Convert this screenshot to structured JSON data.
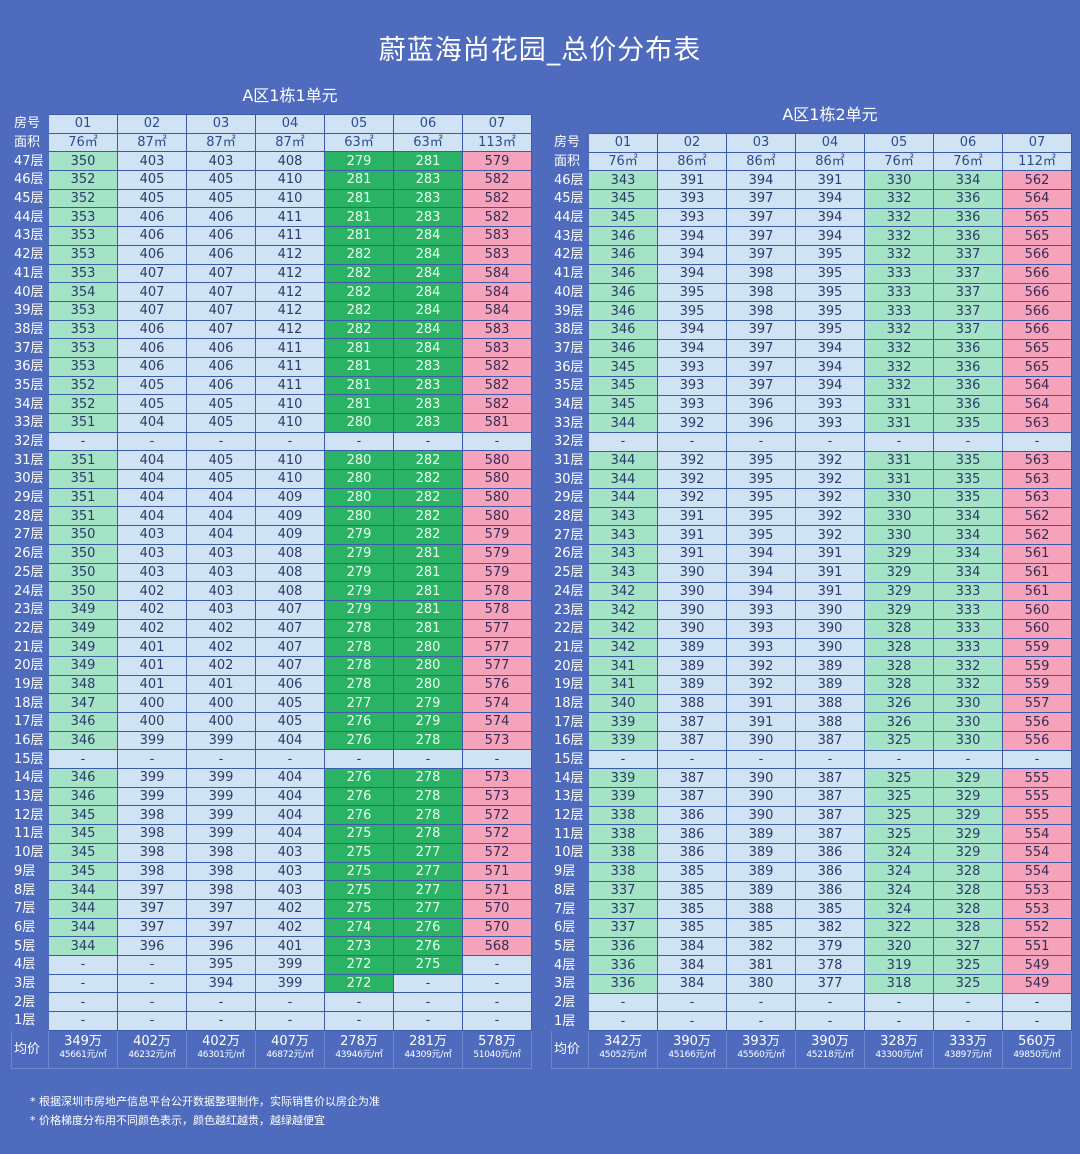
{
  "title": "蔚蓝海尚花园_总价分布表",
  "unit1": {
    "name": "A区1栋1单元",
    "row_label_header": "房号",
    "area_label": "面积",
    "avg_label": "均价",
    "room_numbers": [
      "01",
      "02",
      "03",
      "04",
      "05",
      "06",
      "07"
    ],
    "areas": [
      "76㎡",
      "87㎡",
      "87㎡",
      "87㎡",
      "63㎡",
      "63㎡",
      "113㎡"
    ],
    "column_colors": [
      "g1",
      "w",
      "w",
      "w",
      "g2",
      "g2",
      "p"
    ],
    "rows": [
      {
        "floor": "47层",
        "values": [
          "350",
          "403",
          "403",
          "408",
          "279",
          "281",
          "579"
        ]
      },
      {
        "floor": "46层",
        "values": [
          "352",
          "405",
          "405",
          "410",
          "281",
          "283",
          "582"
        ]
      },
      {
        "floor": "45层",
        "values": [
          "352",
          "405",
          "405",
          "410",
          "281",
          "283",
          "582"
        ]
      },
      {
        "floor": "44层",
        "values": [
          "353",
          "406",
          "406",
          "411",
          "281",
          "283",
          "582"
        ]
      },
      {
        "floor": "43层",
        "values": [
          "353",
          "406",
          "406",
          "411",
          "281",
          "284",
          "583"
        ]
      },
      {
        "floor": "42层",
        "values": [
          "353",
          "406",
          "406",
          "412",
          "282",
          "284",
          "583"
        ]
      },
      {
        "floor": "41层",
        "values": [
          "353",
          "407",
          "407",
          "412",
          "282",
          "284",
          "584"
        ]
      },
      {
        "floor": "40层",
        "values": [
          "354",
          "407",
          "407",
          "412",
          "282",
          "284",
          "584"
        ]
      },
      {
        "floor": "39层",
        "values": [
          "353",
          "407",
          "407",
          "412",
          "282",
          "284",
          "584"
        ]
      },
      {
        "floor": "38层",
        "values": [
          "353",
          "406",
          "407",
          "412",
          "282",
          "284",
          "583"
        ]
      },
      {
        "floor": "37层",
        "values": [
          "353",
          "406",
          "406",
          "411",
          "281",
          "284",
          "583"
        ]
      },
      {
        "floor": "36层",
        "values": [
          "353",
          "406",
          "406",
          "411",
          "281",
          "283",
          "582"
        ]
      },
      {
        "floor": "35层",
        "values": [
          "352",
          "405",
          "406",
          "411",
          "281",
          "283",
          "582"
        ]
      },
      {
        "floor": "34层",
        "values": [
          "352",
          "405",
          "405",
          "410",
          "281",
          "283",
          "582"
        ]
      },
      {
        "floor": "33层",
        "values": [
          "351",
          "404",
          "405",
          "410",
          "280",
          "283",
          "581"
        ]
      },
      {
        "floor": "32层",
        "values": [
          "-",
          "-",
          "-",
          "-",
          "-",
          "-",
          "-"
        ]
      },
      {
        "floor": "31层",
        "values": [
          "351",
          "404",
          "405",
          "410",
          "280",
          "282",
          "580"
        ]
      },
      {
        "floor": "30层",
        "values": [
          "351",
          "404",
          "405",
          "410",
          "280",
          "282",
          "580"
        ]
      },
      {
        "floor": "29层",
        "values": [
          "351",
          "404",
          "404",
          "409",
          "280",
          "282",
          "580"
        ]
      },
      {
        "floor": "28层",
        "values": [
          "351",
          "404",
          "404",
          "409",
          "280",
          "282",
          "580"
        ]
      },
      {
        "floor": "27层",
        "values": [
          "350",
          "403",
          "404",
          "409",
          "279",
          "282",
          "579"
        ]
      },
      {
        "floor": "26层",
        "values": [
          "350",
          "403",
          "403",
          "408",
          "279",
          "281",
          "579"
        ]
      },
      {
        "floor": "25层",
        "values": [
          "350",
          "403",
          "403",
          "408",
          "279",
          "281",
          "579"
        ]
      },
      {
        "floor": "24层",
        "values": [
          "350",
          "402",
          "403",
          "408",
          "279",
          "281",
          "578"
        ]
      },
      {
        "floor": "23层",
        "values": [
          "349",
          "402",
          "403",
          "407",
          "279",
          "281",
          "578"
        ]
      },
      {
        "floor": "22层",
        "values": [
          "349",
          "402",
          "402",
          "407",
          "278",
          "281",
          "577"
        ]
      },
      {
        "floor": "21层",
        "values": [
          "349",
          "401",
          "402",
          "407",
          "278",
          "280",
          "577"
        ]
      },
      {
        "floor": "20层",
        "values": [
          "349",
          "401",
          "402",
          "407",
          "278",
          "280",
          "577"
        ]
      },
      {
        "floor": "19层",
        "values": [
          "348",
          "401",
          "401",
          "406",
          "278",
          "280",
          "576"
        ]
      },
      {
        "floor": "18层",
        "values": [
          "347",
          "400",
          "400",
          "405",
          "277",
          "279",
          "574"
        ]
      },
      {
        "floor": "17层",
        "values": [
          "346",
          "400",
          "400",
          "405",
          "276",
          "279",
          "574"
        ]
      },
      {
        "floor": "16层",
        "values": [
          "346",
          "399",
          "399",
          "404",
          "276",
          "278",
          "573"
        ]
      },
      {
        "floor": "15层",
        "values": [
          "-",
          "-",
          "-",
          "-",
          "-",
          "-",
          "-"
        ]
      },
      {
        "floor": "14层",
        "values": [
          "346",
          "399",
          "399",
          "404",
          "276",
          "278",
          "573"
        ]
      },
      {
        "floor": "13层",
        "values": [
          "346",
          "399",
          "399",
          "404",
          "276",
          "278",
          "573"
        ]
      },
      {
        "floor": "12层",
        "values": [
          "345",
          "398",
          "399",
          "404",
          "276",
          "278",
          "572"
        ]
      },
      {
        "floor": "11层",
        "values": [
          "345",
          "398",
          "399",
          "404",
          "275",
          "278",
          "572"
        ]
      },
      {
        "floor": "10层",
        "values": [
          "345",
          "398",
          "398",
          "403",
          "275",
          "277",
          "572"
        ]
      },
      {
        "floor": "9层",
        "values": [
          "345",
          "398",
          "398",
          "403",
          "275",
          "277",
          "571"
        ]
      },
      {
        "floor": "8层",
        "values": [
          "344",
          "397",
          "398",
          "403",
          "275",
          "277",
          "571"
        ]
      },
      {
        "floor": "7层",
        "values": [
          "344",
          "397",
          "397",
          "402",
          "275",
          "277",
          "570"
        ]
      },
      {
        "floor": "6层",
        "values": [
          "344",
          "397",
          "397",
          "402",
          "274",
          "276",
          "570"
        ]
      },
      {
        "floor": "5层",
        "values": [
          "344",
          "396",
          "396",
          "401",
          "273",
          "276",
          "568"
        ]
      },
      {
        "floor": "4层",
        "values": [
          "-",
          "-",
          "395",
          "399",
          "272",
          "275",
          "-"
        ]
      },
      {
        "floor": "3层",
        "values": [
          "-",
          "-",
          "394",
          "399",
          "272",
          "-",
          "-"
        ]
      },
      {
        "floor": "2层",
        "values": [
          "-",
          "-",
          "-",
          "-",
          "-",
          "-",
          "-"
        ]
      },
      {
        "floor": "1层",
        "values": [
          "-",
          "-",
          "-",
          "-",
          "-",
          "-",
          "-"
        ]
      }
    ],
    "averages": [
      {
        "total": "349万",
        "per_sqm": "45661元/㎡"
      },
      {
        "total": "402万",
        "per_sqm": "46232元/㎡"
      },
      {
        "total": "402万",
        "per_sqm": "46301元/㎡"
      },
      {
        "total": "407万",
        "per_sqm": "46872元/㎡"
      },
      {
        "total": "278万",
        "per_sqm": "43946元/㎡"
      },
      {
        "total": "281万",
        "per_sqm": "44309元/㎡"
      },
      {
        "total": "578万",
        "per_sqm": "51040元/㎡"
      }
    ]
  },
  "unit2": {
    "name": "A区1栋2单元",
    "row_label_header": "房号",
    "area_label": "面积",
    "avg_label": "均价",
    "room_numbers": [
      "01",
      "02",
      "03",
      "04",
      "05",
      "06",
      "07"
    ],
    "areas": [
      "76㎡",
      "86㎡",
      "86㎡",
      "86㎡",
      "76㎡",
      "76㎡",
      "112㎡"
    ],
    "column_colors": [
      "g1",
      "w",
      "w",
      "w",
      "g1",
      "g1",
      "p"
    ],
    "rows": [
      {
        "floor": "46层",
        "values": [
          "343",
          "391",
          "394",
          "391",
          "330",
          "334",
          "562"
        ]
      },
      {
        "floor": "45层",
        "values": [
          "345",
          "393",
          "397",
          "394",
          "332",
          "336",
          "564"
        ]
      },
      {
        "floor": "44层",
        "values": [
          "345",
          "393",
          "397",
          "394",
          "332",
          "336",
          "565"
        ]
      },
      {
        "floor": "43层",
        "values": [
          "346",
          "394",
          "397",
          "394",
          "332",
          "336",
          "565"
        ]
      },
      {
        "floor": "42层",
        "values": [
          "346",
          "394",
          "397",
          "395",
          "332",
          "337",
          "566"
        ]
      },
      {
        "floor": "41层",
        "values": [
          "346",
          "394",
          "398",
          "395",
          "333",
          "337",
          "566"
        ]
      },
      {
        "floor": "40层",
        "values": [
          "346",
          "395",
          "398",
          "395",
          "333",
          "337",
          "566"
        ]
      },
      {
        "floor": "39层",
        "values": [
          "346",
          "395",
          "398",
          "395",
          "333",
          "337",
          "566"
        ]
      },
      {
        "floor": "38层",
        "values": [
          "346",
          "394",
          "397",
          "395",
          "332",
          "337",
          "566"
        ]
      },
      {
        "floor": "37层",
        "values": [
          "346",
          "394",
          "397",
          "394",
          "332",
          "336",
          "565"
        ]
      },
      {
        "floor": "36层",
        "values": [
          "345",
          "393",
          "397",
          "394",
          "332",
          "336",
          "565"
        ]
      },
      {
        "floor": "35层",
        "values": [
          "345",
          "393",
          "397",
          "394",
          "332",
          "336",
          "564"
        ]
      },
      {
        "floor": "34层",
        "values": [
          "345",
          "393",
          "396",
          "393",
          "331",
          "336",
          "564"
        ]
      },
      {
        "floor": "33层",
        "values": [
          "344",
          "392",
          "396",
          "393",
          "331",
          "335",
          "563"
        ]
      },
      {
        "floor": "32层",
        "values": [
          "-",
          "-",
          "-",
          "-",
          "-",
          "-",
          "-"
        ]
      },
      {
        "floor": "31层",
        "values": [
          "344",
          "392",
          "395",
          "392",
          "331",
          "335",
          "563"
        ]
      },
      {
        "floor": "30层",
        "values": [
          "344",
          "392",
          "395",
          "392",
          "331",
          "335",
          "563"
        ]
      },
      {
        "floor": "29层",
        "values": [
          "344",
          "392",
          "395",
          "392",
          "330",
          "335",
          "563"
        ]
      },
      {
        "floor": "28层",
        "values": [
          "343",
          "391",
          "395",
          "392",
          "330",
          "334",
          "562"
        ]
      },
      {
        "floor": "27层",
        "values": [
          "343",
          "391",
          "395",
          "392",
          "330",
          "334",
          "562"
        ]
      },
      {
        "floor": "26层",
        "values": [
          "343",
          "391",
          "394",
          "391",
          "329",
          "334",
          "561"
        ]
      },
      {
        "floor": "25层",
        "values": [
          "343",
          "390",
          "394",
          "391",
          "329",
          "334",
          "561"
        ]
      },
      {
        "floor": "24层",
        "values": [
          "342",
          "390",
          "394",
          "391",
          "329",
          "333",
          "561"
        ]
      },
      {
        "floor": "23层",
        "values": [
          "342",
          "390",
          "393",
          "390",
          "329",
          "333",
          "560"
        ]
      },
      {
        "floor": "22层",
        "values": [
          "342",
          "390",
          "393",
          "390",
          "328",
          "333",
          "560"
        ]
      },
      {
        "floor": "21层",
        "values": [
          "342",
          "389",
          "393",
          "390",
          "328",
          "333",
          "559"
        ]
      },
      {
        "floor": "20层",
        "values": [
          "341",
          "389",
          "392",
          "389",
          "328",
          "332",
          "559"
        ]
      },
      {
        "floor": "19层",
        "values": [
          "341",
          "389",
          "392",
          "389",
          "328",
          "332",
          "559"
        ]
      },
      {
        "floor": "18层",
        "values": [
          "340",
          "388",
          "391",
          "388",
          "326",
          "330",
          "557"
        ]
      },
      {
        "floor": "17层",
        "values": [
          "339",
          "387",
          "391",
          "388",
          "326",
          "330",
          "556"
        ]
      },
      {
        "floor": "16层",
        "values": [
          "339",
          "387",
          "390",
          "387",
          "325",
          "330",
          "556"
        ]
      },
      {
        "floor": "15层",
        "values": [
          "-",
          "-",
          "-",
          "-",
          "-",
          "-",
          "-"
        ]
      },
      {
        "floor": "14层",
        "values": [
          "339",
          "387",
          "390",
          "387",
          "325",
          "329",
          "555"
        ]
      },
      {
        "floor": "13层",
        "values": [
          "339",
          "387",
          "390",
          "387",
          "325",
          "329",
          "555"
        ]
      },
      {
        "floor": "12层",
        "values": [
          "338",
          "386",
          "390",
          "387",
          "325",
          "329",
          "555"
        ]
      },
      {
        "floor": "11层",
        "values": [
          "338",
          "386",
          "389",
          "387",
          "325",
          "329",
          "554"
        ]
      },
      {
        "floor": "10层",
        "values": [
          "338",
          "386",
          "389",
          "386",
          "324",
          "329",
          "554"
        ]
      },
      {
        "floor": "9层",
        "values": [
          "338",
          "385",
          "389",
          "386",
          "324",
          "328",
          "554"
        ]
      },
      {
        "floor": "8层",
        "values": [
          "337",
          "385",
          "389",
          "386",
          "324",
          "328",
          "553"
        ]
      },
      {
        "floor": "7层",
        "values": [
          "337",
          "385",
          "388",
          "385",
          "324",
          "328",
          "553"
        ]
      },
      {
        "floor": "6层",
        "values": [
          "337",
          "385",
          "385",
          "382",
          "322",
          "328",
          "552"
        ]
      },
      {
        "floor": "5层",
        "values": [
          "336",
          "384",
          "382",
          "379",
          "320",
          "327",
          "551"
        ]
      },
      {
        "floor": "4层",
        "values": [
          "336",
          "384",
          "381",
          "378",
          "319",
          "325",
          "549"
        ]
      },
      {
        "floor": "3层",
        "values": [
          "336",
          "384",
          "380",
          "377",
          "318",
          "325",
          "549"
        ]
      },
      {
        "floor": "2层",
        "values": [
          "-",
          "-",
          "-",
          "-",
          "-",
          "-",
          "-"
        ]
      },
      {
        "floor": "1层",
        "values": [
          "-",
          "-",
          "-",
          "-",
          "-",
          "-",
          "-"
        ]
      }
    ],
    "averages": [
      {
        "total": "342万",
        "per_sqm": "45052元/㎡"
      },
      {
        "total": "390万",
        "per_sqm": "45166元/㎡"
      },
      {
        "total": "393万",
        "per_sqm": "45560元/㎡"
      },
      {
        "total": "390万",
        "per_sqm": "45218元/㎡"
      },
      {
        "total": "328万",
        "per_sqm": "43300元/㎡"
      },
      {
        "total": "333万",
        "per_sqm": "43897元/㎡"
      },
      {
        "total": "560万",
        "per_sqm": "49850元/㎡"
      }
    ]
  },
  "notes": [
    "* 根据深圳市房地产信息平台公开数据整理制作，实际销售价以房企为准",
    "* 价格梯度分布用不同颜色表示，颜色越红越贵，越绿越便宜"
  ],
  "colors": {
    "background": "#4e6bbd",
    "cheap_green": "#2ab364",
    "light_green": "#a4e3c5",
    "neutral_blue": "#cfe3f4",
    "expensive_pink": "#f5a3bb"
  }
}
